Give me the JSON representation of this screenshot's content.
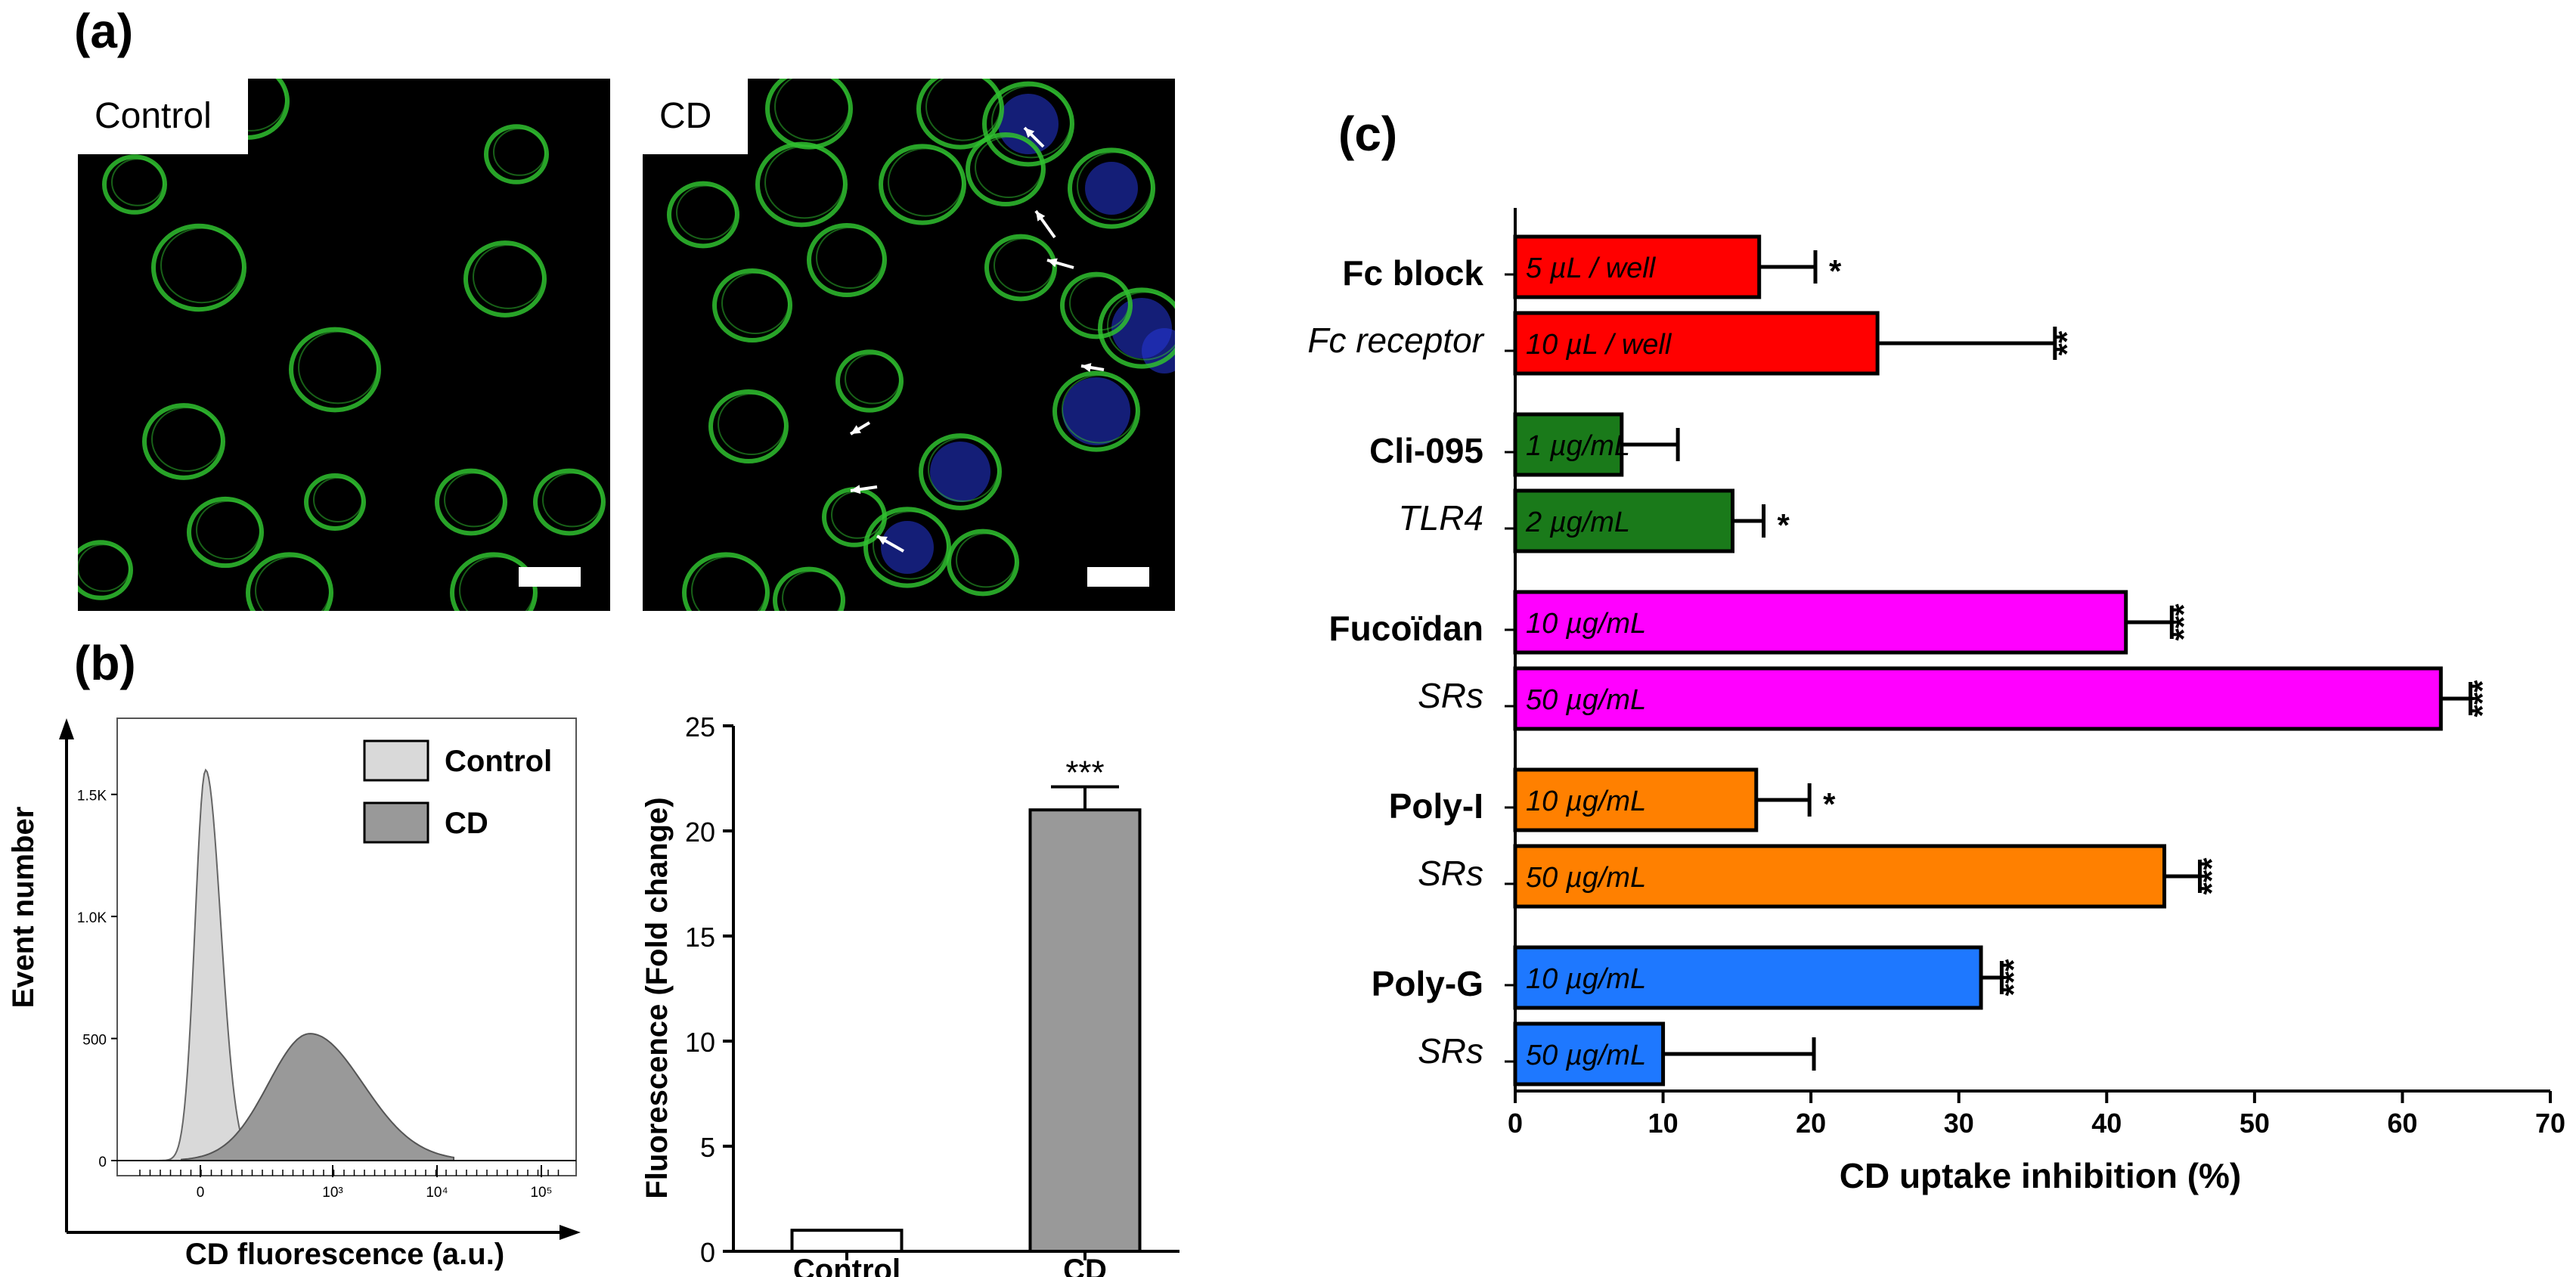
{
  "panels": {
    "a": "(a)",
    "b": "(b)",
    "c": "(c)"
  },
  "micrographs": [
    {
      "label": "Control"
    },
    {
      "label": "CD"
    }
  ],
  "colors": {
    "membrane": "#2fbf2f",
    "nucleus_cd": "#2536d8",
    "fc_block": "#ff0000",
    "cli_095": "#1a7a1a",
    "fucoidan": "#ff00ff",
    "poly_i": "#ff8000",
    "poly_g": "#1e78ff",
    "hist_control": "#d9d9d9",
    "hist_cd": "#999999",
    "bar_control": "#ffffff",
    "bar_cd": "#999999"
  },
  "chart_data": [
    {
      "type": "area",
      "panel": "(b) left",
      "xlabel": "CD fluorescence (a.u.)",
      "ylabel": "Event number",
      "x_scale": "log",
      "x_ticks": [
        "0",
        "10³",
        "10⁴",
        "10⁵"
      ],
      "y_ticks": [
        "0",
        "500",
        "1.0K",
        "1.5K"
      ],
      "ylim": [
        0,
        1750
      ],
      "legend": [
        "Control",
        "CD"
      ],
      "legend_position": "top-right",
      "series": [
        {
          "name": "Control",
          "peak_value": 1600,
          "peak_position": "≈ 10² (near 0)"
        },
        {
          "name": "CD",
          "peak_value": 520,
          "peak_position": "≈ 10³"
        }
      ]
    },
    {
      "type": "bar",
      "panel": "(b) right",
      "categories": [
        "Control",
        "CD"
      ],
      "values": [
        1,
        21
      ],
      "errors": [
        0,
        1.1
      ],
      "significance": [
        "",
        "***"
      ],
      "ylabel": "Fluorescence (Fold change)",
      "ylim": [
        0,
        25
      ],
      "y_ticks": [
        0,
        5,
        10,
        15,
        20,
        25
      ]
    },
    {
      "type": "bar",
      "panel": "(c)",
      "orientation": "horizontal",
      "xlabel": "CD uptake inhibition (%)",
      "xlim": [
        0,
        70
      ],
      "x_ticks": [
        0,
        10,
        20,
        30,
        40,
        50,
        60,
        70
      ],
      "groups": [
        {
          "name": "Fc block",
          "target": "Fc receptor",
          "color_key": "fc_block",
          "bars": [
            {
              "label": "5 µL / well",
              "value": 16.5,
              "error": 3.8,
              "sig": "*"
            },
            {
              "label": "10 µL / well",
              "value": 24.5,
              "error": 12.0,
              "sig": "**"
            }
          ]
        },
        {
          "name": "Cli-095",
          "target": "TLR4",
          "color_key": "cli_095",
          "bars": [
            {
              "label": "1 µg/mL",
              "value": 7.2,
              "error": 3.8,
              "sig": ""
            },
            {
              "label": "2 µg/mL",
              "value": 14.7,
              "error": 2.1,
              "sig": "*"
            }
          ]
        },
        {
          "name": "Fucoïdan",
          "target": "SRs",
          "color_key": "fucoidan",
          "bars": [
            {
              "label": "10 µg/mL",
              "value": 41.3,
              "error": 3.1,
              "sig": "***"
            },
            {
              "label": "50 µg/mL",
              "value": 62.6,
              "error": 2.0,
              "sig": "***"
            }
          ]
        },
        {
          "name": "Poly-I",
          "target": "SRs",
          "color_key": "poly_i",
          "bars": [
            {
              "label": "10 µg/mL",
              "value": 16.3,
              "error": 3.6,
              "sig": "*"
            },
            {
              "label": "50 µg/mL",
              "value": 43.9,
              "error": 2.4,
              "sig": "***"
            }
          ]
        },
        {
          "name": "Poly-G",
          "target": "SRs",
          "color_key": "poly_g",
          "bars": [
            {
              "label": "10 µg/mL",
              "value": 31.5,
              "error": 1.4,
              "sig": "***"
            },
            {
              "label": "50 µg/mL",
              "value": 10.0,
              "error": 10.2,
              "sig": ""
            }
          ]
        }
      ]
    }
  ]
}
